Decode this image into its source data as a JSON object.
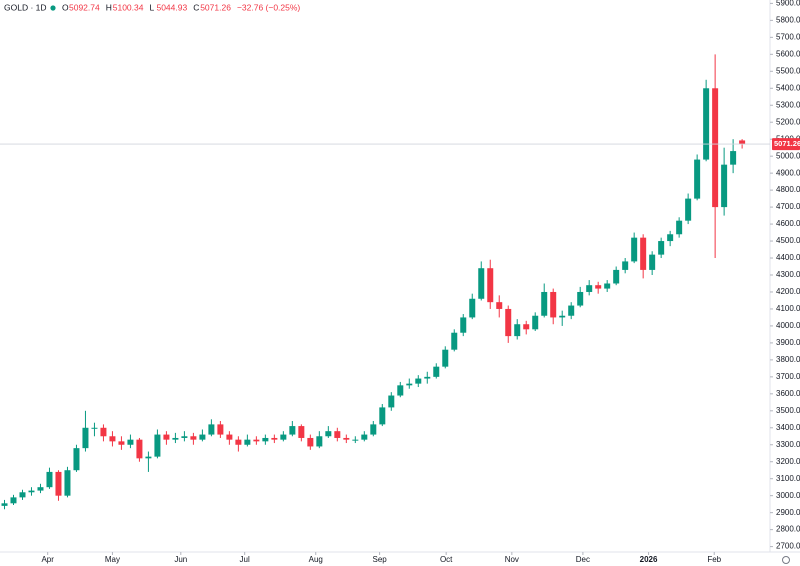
{
  "chart_data": {
    "type": "candlestick",
    "title": "GOLD · 1D",
    "legend_fields": [
      "O",
      "H",
      "L",
      "C"
    ],
    "change": {
      "value": -32.76,
      "label": "−32.76 (−0.25%)"
    },
    "up_color": "#089981",
    "down_color": "#f23645",
    "ylim": [
      2680,
      5920
    ],
    "yticks": [
      {
        "value": 2700,
        "label": "2700.00"
      },
      {
        "value": 2800,
        "label": "2800.00"
      },
      {
        "value": 2900,
        "label": "2900.00"
      },
      {
        "value": 3000,
        "label": "3000.00"
      },
      {
        "value": 3100,
        "label": "3100.00"
      },
      {
        "value": 3200,
        "label": "3200.00"
      },
      {
        "value": 3300,
        "label": "3300.00"
      },
      {
        "value": 3400,
        "label": "3400.00"
      },
      {
        "value": 3500,
        "label": "3500.00"
      },
      {
        "value": 3600,
        "label": "3600.00"
      },
      {
        "value": 3700,
        "label": "3700.00"
      },
      {
        "value": 3800,
        "label": "3800.00"
      },
      {
        "value": 3900,
        "label": "3900.00"
      },
      {
        "value": 4000,
        "label": "4000.00"
      },
      {
        "value": 4100,
        "label": "4100.00"
      },
      {
        "value": 4200,
        "label": "4200.00"
      },
      {
        "value": 4300,
        "label": "4300.00"
      },
      {
        "value": 4400,
        "label": "4400.00"
      },
      {
        "value": 4500,
        "label": "4500.00"
      },
      {
        "value": 4600,
        "label": "4600.00"
      },
      {
        "value": 4700,
        "label": "4700.00"
      },
      {
        "value": 4800,
        "label": "4800.00"
      },
      {
        "value": 4900,
        "label": "4900.00"
      },
      {
        "value": 5000,
        "label": "5000.00"
      },
      {
        "value": 5100,
        "label": "5100.00"
      },
      {
        "value": 5200,
        "label": "5200.00"
      },
      {
        "value": 5300,
        "label": "5300.00"
      },
      {
        "value": 5400,
        "label": "5400.00"
      },
      {
        "value": 5500,
        "label": "5500.00"
      },
      {
        "value": 5600,
        "label": "5600.00"
      },
      {
        "value": 5700,
        "label": "5700.00"
      },
      {
        "value": 5800,
        "label": "5800.00"
      },
      {
        "value": 5900,
        "label": "5900.00"
      }
    ],
    "xlim": [
      -0.5,
      85.1
    ],
    "xticks": [
      {
        "value": 4.8,
        "label": "Apr"
      },
      {
        "value": 12,
        "label": "May"
      },
      {
        "value": 19.6,
        "label": "Jun"
      },
      {
        "value": 26.7,
        "label": "Jul"
      },
      {
        "value": 34.6,
        "label": "Aug"
      },
      {
        "value": 41.7,
        "label": "Sep"
      },
      {
        "value": 49.1,
        "label": "Oct"
      },
      {
        "value": 56.4,
        "label": "Nov"
      },
      {
        "value": 64.3,
        "label": "Dec"
      },
      {
        "value": 71.6,
        "label": "2026"
      },
      {
        "value": 78.9,
        "label": "Feb"
      }
    ],
    "candles": [
      [
        2940,
        2975,
        2920,
        2955
      ],
      [
        2955,
        3005,
        2945,
        2990
      ],
      [
        2990,
        3035,
        2975,
        3020
      ],
      [
        3020,
        3050,
        3000,
        3030
      ],
      [
        3030,
        3070,
        3015,
        3050
      ],
      [
        3050,
        3165,
        3040,
        3140
      ],
      [
        3140,
        3150,
        2970,
        3000
      ],
      [
        3000,
        3170,
        2990,
        3150
      ],
      [
        3150,
        3300,
        3140,
        3280
      ],
      [
        3280,
        3500,
        3260,
        3400
      ],
      [
        3400,
        3430,
        3350,
        3400
      ],
      [
        3400,
        3420,
        3320,
        3350
      ],
      [
        3350,
        3380,
        3290,
        3320
      ],
      [
        3320,
        3350,
        3270,
        3300
      ],
      [
        3300,
        3360,
        3280,
        3330
      ],
      [
        3330,
        3340,
        3200,
        3220
      ],
      [
        3220,
        3260,
        3140,
        3230
      ],
      [
        3230,
        3390,
        3220,
        3360
      ],
      [
        3360,
        3380,
        3300,
        3330
      ],
      [
        3330,
        3370,
        3310,
        3340
      ],
      [
        3340,
        3380,
        3320,
        3350
      ],
      [
        3350,
        3370,
        3300,
        3330
      ],
      [
        3330,
        3390,
        3320,
        3360
      ],
      [
        3360,
        3450,
        3350,
        3420
      ],
      [
        3420,
        3440,
        3340,
        3360
      ],
      [
        3360,
        3380,
        3300,
        3330
      ],
      [
        3330,
        3350,
        3260,
        3300
      ],
      [
        3300,
        3360,
        3290,
        3330
      ],
      [
        3330,
        3350,
        3300,
        3320
      ],
      [
        3320,
        3360,
        3300,
        3340
      ],
      [
        3340,
        3360,
        3310,
        3330
      ],
      [
        3330,
        3380,
        3320,
        3360
      ],
      [
        3360,
        3440,
        3350,
        3410
      ],
      [
        3410,
        3420,
        3320,
        3340
      ],
      [
        3340,
        3360,
        3270,
        3290
      ],
      [
        3290,
        3380,
        3280,
        3350
      ],
      [
        3350,
        3410,
        3340,
        3380
      ],
      [
        3380,
        3400,
        3320,
        3340
      ],
      [
        3340,
        3360,
        3310,
        3330
      ],
      [
        3330,
        3350,
        3310,
        3330
      ],
      [
        3330,
        3380,
        3320,
        3360
      ],
      [
        3360,
        3440,
        3350,
        3420
      ],
      [
        3420,
        3540,
        3410,
        3520
      ],
      [
        3520,
        3610,
        3500,
        3590
      ],
      [
        3590,
        3670,
        3580,
        3650
      ],
      [
        3650,
        3690,
        3630,
        3660
      ],
      [
        3660,
        3710,
        3640,
        3690
      ],
      [
        3690,
        3730,
        3660,
        3700
      ],
      [
        3700,
        3780,
        3690,
        3760
      ],
      [
        3760,
        3880,
        3750,
        3860
      ],
      [
        3860,
        3980,
        3850,
        3960
      ],
      [
        3960,
        4070,
        3940,
        4050
      ],
      [
        4050,
        4190,
        4040,
        4160
      ],
      [
        4160,
        4380,
        4150,
        4340
      ],
      [
        4340,
        4390,
        4100,
        4140
      ],
      [
        4140,
        4180,
        4050,
        4100
      ],
      [
        4100,
        4120,
        3900,
        3940
      ],
      [
        3940,
        4040,
        3920,
        4010
      ],
      [
        4010,
        4030,
        3950,
        3980
      ],
      [
        3980,
        4080,
        3970,
        4060
      ],
      [
        4060,
        4250,
        4050,
        4200
      ],
      [
        4200,
        4220,
        4010,
        4050
      ],
      [
        4050,
        4090,
        4000,
        4060
      ],
      [
        4060,
        4140,
        4040,
        4120
      ],
      [
        4120,
        4230,
        4110,
        4200
      ],
      [
        4200,
        4270,
        4180,
        4240
      ],
      [
        4240,
        4260,
        4190,
        4220
      ],
      [
        4220,
        4270,
        4200,
        4250
      ],
      [
        4250,
        4350,
        4240,
        4330
      ],
      [
        4330,
        4400,
        4310,
        4380
      ],
      [
        4380,
        4550,
        4370,
        4520
      ],
      [
        4520,
        4540,
        4280,
        4330
      ],
      [
        4330,
        4440,
        4300,
        4420
      ],
      [
        4420,
        4520,
        4400,
        4500
      ],
      [
        4500,
        4560,
        4470,
        4540
      ],
      [
        4540,
        4640,
        4520,
        4620
      ],
      [
        4620,
        4780,
        4600,
        4750
      ],
      [
        4750,
        5010,
        4740,
        4980
      ],
      [
        4980,
        5450,
        4970,
        5400
      ],
      [
        5400,
        5600,
        4400,
        4700
      ],
      [
        4700,
        5050,
        4650,
        4950
      ],
      [
        4950,
        5100,
        4900,
        5030
      ],
      [
        5092.74,
        5100.34,
        5044.93,
        5071.26
      ]
    ]
  }
}
